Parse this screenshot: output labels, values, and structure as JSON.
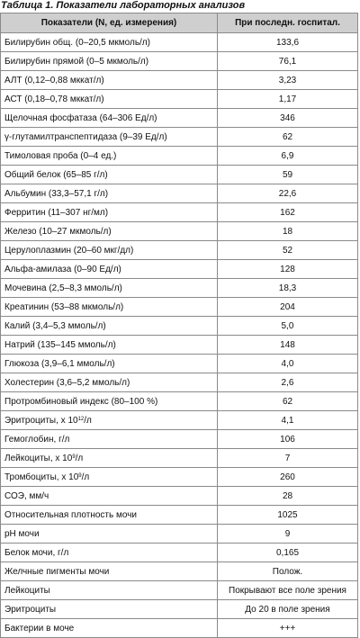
{
  "caption": "Таблица 1. Показатели лабораторных анализов",
  "headers": {
    "indicator": "Показатели (N, ед. измерения)",
    "value": "При последн. госпитал."
  },
  "rows": [
    {
      "name": "Билирубин общ. (0–20,5 мкмоль/л)",
      "value": "133,6"
    },
    {
      "name": "Билирубин прямой (0–5 мкмоль/л)",
      "value": "76,1"
    },
    {
      "name": "АЛТ (0,12–0,88 мккат/л)",
      "value": "3,23"
    },
    {
      "name": "АСТ (0,18–0,78 мккат/л)",
      "value": "1,17"
    },
    {
      "name": "Щелочная фосфатаза (64–306 Ед/л)",
      "value": "346"
    },
    {
      "name": "γ-глутамилтранспептидаза (9–39 Ед/л)",
      "value": "62"
    },
    {
      "name": "Тимоловая проба (0–4 ед.)",
      "value": "6,9"
    },
    {
      "name": "Общий белок (65–85 г/л)",
      "value": "59"
    },
    {
      "name": "Альбумин (33,3–57,1 г/л)",
      "value": "22,6"
    },
    {
      "name": "Ферритин (11–307 нг/мл)",
      "value": "162"
    },
    {
      "name": "Железо (10–27 мкмоль/л)",
      "value": "18"
    },
    {
      "name": "Церулоплазмин (20–60 мкг/дл)",
      "value": "52"
    },
    {
      "name": "Альфа-амилаза (0–90 Ед/л)",
      "value": "128"
    },
    {
      "name": "Мочевина (2,5–8,3 ммоль/л)",
      "value": "18,3"
    },
    {
      "name": "Креатинин (53–88 мкмоль/л)",
      "value": "204"
    },
    {
      "name": "Калий (3,4–5,3 ммоль/л)",
      "value": "5,0"
    },
    {
      "name": "Натрий (135–145 ммоль/л)",
      "value": "148"
    },
    {
      "name": "Глюкоза (3,9–6,1 ммоль/л)",
      "value": "4,0"
    },
    {
      "name": "Холестерин (3,6–5,2 ммоль/л)",
      "value": "2,6"
    },
    {
      "name": "Протромбиновый индекс (80–100 %)",
      "value": "62"
    },
    {
      "name": "Эритроциты, х 10",
      "sup": "12",
      "suffix": "/л",
      "value": "4,1"
    },
    {
      "name": "Гемоглобин, г/л",
      "value": "106"
    },
    {
      "name": "Лейкоциты, х 10",
      "sup": "9",
      "suffix": "/л",
      "value": "7"
    },
    {
      "name": "Тромбоциты, х 10",
      "sup": "9",
      "suffix": "/л",
      "value": "260"
    },
    {
      "name": "СОЭ, мм/ч",
      "value": "28"
    },
    {
      "name": "Относительная плотность мочи",
      "value": "1025"
    },
    {
      "name": "рН мочи",
      "value": "9"
    },
    {
      "name": "Белок мочи, г/л",
      "value": "0,165"
    },
    {
      "name": "Желчные пигменты мочи",
      "value": "Полож."
    },
    {
      "name": "Лейкоциты",
      "value": "Покрывают все поле зрения"
    },
    {
      "name": "Эритроциты",
      "value": "До 20 в поле зрения"
    },
    {
      "name": "Бактерии в моче",
      "value": "+++"
    }
  ]
}
